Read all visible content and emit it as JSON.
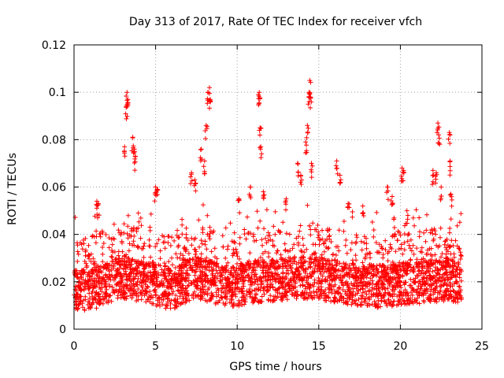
{
  "chart_data": {
    "type": "scatter",
    "title": "Day 313 of 2017, Rate Of TEC Index for receiver vfch",
    "xlabel": "GPS time / hours",
    "ylabel": "ROTI / TECUs",
    "xlim": [
      0,
      25
    ],
    "ylim": [
      0,
      0.12
    ],
    "xticks": [
      0,
      5,
      10,
      15,
      20,
      25
    ],
    "xtick_labels": [
      "0",
      "5",
      "10",
      "15",
      "20",
      "25"
    ],
    "yticks": [
      0,
      0.02,
      0.04,
      0.06,
      0.08,
      0.1,
      0.12
    ],
    "ytick_labels": [
      "0",
      "0.02",
      "0.04",
      "0.06",
      "0.08",
      "0.1",
      "0.12"
    ],
    "grid": true,
    "marker": "+",
    "series": [
      {
        "name": "ROTI",
        "color": "#ff0000",
        "x_range": [
          0,
          23.75
        ],
        "base_level": [
          [
            0,
            0.016
          ],
          [
            1.5,
            0.018
          ],
          [
            3,
            0.022
          ],
          [
            4.5,
            0.02
          ],
          [
            6,
            0.017
          ],
          [
            7.5,
            0.022
          ],
          [
            8.5,
            0.02
          ],
          [
            9.5,
            0.018
          ],
          [
            11,
            0.02
          ],
          [
            12.5,
            0.021
          ],
          [
            14,
            0.022
          ],
          [
            15.5,
            0.021
          ],
          [
            17,
            0.019
          ],
          [
            18.5,
            0.018
          ],
          [
            20,
            0.019
          ],
          [
            21.5,
            0.02
          ],
          [
            23,
            0.021
          ],
          [
            23.75,
            0.018
          ]
        ],
        "spikes": [
          [
            1.4,
            0.054
          ],
          [
            1.5,
            0.053
          ],
          [
            3.1,
            0.077
          ],
          [
            3.2,
            0.094
          ],
          [
            3.25,
            0.1
          ],
          [
            3.3,
            0.097
          ],
          [
            3.6,
            0.081
          ],
          [
            3.7,
            0.076
          ],
          [
            3.75,
            0.073
          ],
          [
            5.0,
            0.06
          ],
          [
            5.1,
            0.059
          ],
          [
            7.2,
            0.066
          ],
          [
            7.4,
            0.063
          ],
          [
            7.8,
            0.076
          ],
          [
            8.0,
            0.071
          ],
          [
            8.1,
            0.086
          ],
          [
            8.2,
            0.1
          ],
          [
            8.3,
            0.102
          ],
          [
            8.35,
            0.097
          ],
          [
            10.1,
            0.055
          ],
          [
            10.8,
            0.06
          ],
          [
            11.3,
            0.099
          ],
          [
            11.35,
            0.1
          ],
          [
            11.4,
            0.085
          ],
          [
            11.45,
            0.077
          ],
          [
            11.6,
            0.058
          ],
          [
            13.0,
            0.055
          ],
          [
            13.7,
            0.07
          ],
          [
            13.9,
            0.065
          ],
          [
            14.2,
            0.079
          ],
          [
            14.3,
            0.086
          ],
          [
            14.4,
            0.1
          ],
          [
            14.45,
            0.105
          ],
          [
            14.5,
            0.098
          ],
          [
            14.55,
            0.07
          ],
          [
            16.1,
            0.071
          ],
          [
            16.3,
            0.065
          ],
          [
            16.8,
            0.053
          ],
          [
            17.7,
            0.052
          ],
          [
            19.2,
            0.06
          ],
          [
            19.5,
            0.056
          ],
          [
            20.1,
            0.068
          ],
          [
            20.2,
            0.067
          ],
          [
            20.4,
            0.05
          ],
          [
            22.0,
            0.067
          ],
          [
            22.2,
            0.066
          ],
          [
            22.3,
            0.087
          ],
          [
            22.35,
            0.082
          ],
          [
            22.5,
            0.06
          ],
          [
            23.0,
            0.083
          ],
          [
            23.05,
            0.071
          ],
          [
            23.1,
            0.057
          ]
        ]
      }
    ]
  }
}
